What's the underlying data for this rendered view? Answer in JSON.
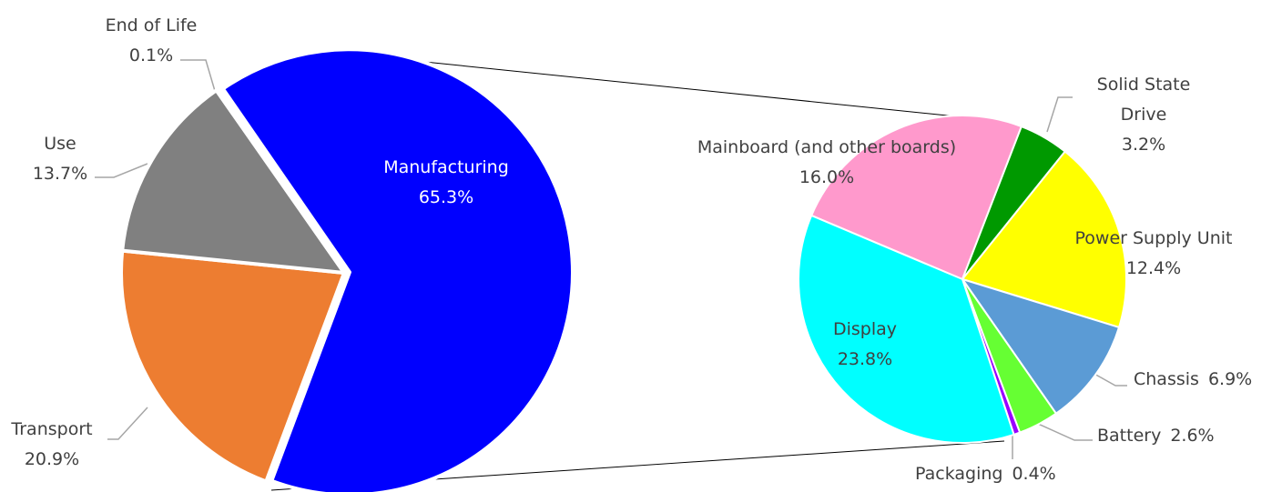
{
  "chart_data": [
    {
      "type": "pie",
      "categories": [
        "Manufacturing",
        "Transport",
        "Use",
        "End of Life"
      ],
      "values": [
        65.3,
        20.9,
        13.7,
        0.1
      ],
      "value_labels": [
        "65.3%",
        "20.9%",
        "13.7%",
        "0.1%"
      ],
      "colors": [
        "#0000ff",
        "#ed7d31",
        "#808080",
        "#4472c4"
      ]
    },
    {
      "type": "pie",
      "categories": [
        "Mainboard (and other boards)",
        "Solid State Drive",
        "Power Supply Unit",
        "Chassis",
        "Battery",
        "Packaging",
        "Display"
      ],
      "values": [
        16.0,
        3.2,
        12.4,
        6.9,
        2.6,
        0.4,
        23.8
      ],
      "value_labels": [
        "16.0%",
        "3.2%",
        "12.4%",
        "6.9%",
        "2.6%",
        "0.4%",
        "23.8%"
      ],
      "colors": [
        "#ff99cc",
        "#009900",
        "#ffff00",
        "#5b9bd5",
        "#66ff33",
        "#9900ff",
        "#00ffff"
      ]
    }
  ]
}
